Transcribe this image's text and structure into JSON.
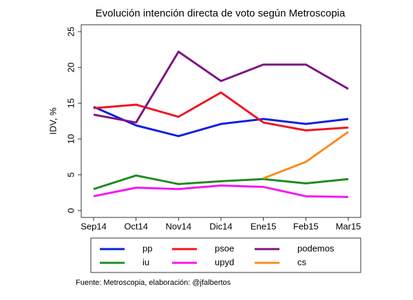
{
  "chart_data": {
    "type": "line",
    "title": "Evolución intención directa de voto según Metroscopia",
    "y_label": "IDV, %",
    "note": "Fuente: Metroscopia, elaboración: @jfalbertos",
    "categories": [
      "Sep14",
      "Oct14",
      "Nov14",
      "Dic14",
      "Ene15",
      "Feb15",
      "Mar15"
    ],
    "ylim": [
      0,
      25
    ],
    "yticks": [
      0,
      5,
      10,
      15,
      20,
      25
    ],
    "grid": false,
    "legend_position": "bottom",
    "series": [
      {
        "name": "pp",
        "color": "#0a1ee6",
        "values": [
          14.5,
          11.9,
          10.4,
          12.1,
          12.8,
          12.1,
          12.8
        ]
      },
      {
        "name": "psoe",
        "color": "#f0141e",
        "values": [
          14.3,
          14.8,
          13.1,
          16.5,
          12.3,
          11.2,
          11.6
        ]
      },
      {
        "name": "podemos",
        "color": "#7d1482",
        "values": [
          13.4,
          12.3,
          22.2,
          18.1,
          20.4,
          20.4,
          17.0
        ]
      },
      {
        "name": "iu",
        "color": "#1e8c1e",
        "values": [
          3.0,
          4.9,
          3.7,
          4.1,
          4.4,
          3.8,
          4.4
        ]
      },
      {
        "name": "upyd",
        "color": "#f514f5",
        "values": [
          2.0,
          3.2,
          3.0,
          3.5,
          3.3,
          2.0,
          1.9
        ]
      },
      {
        "name": "cs",
        "color": "#fa8c1e",
        "values": [
          null,
          null,
          null,
          null,
          4.5,
          6.8,
          11.0
        ]
      }
    ]
  }
}
